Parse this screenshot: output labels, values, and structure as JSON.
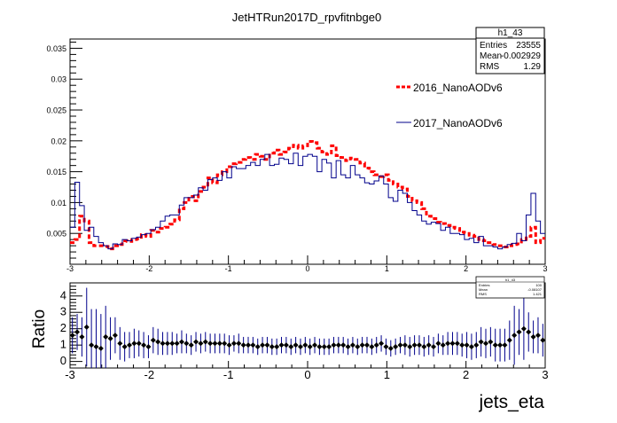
{
  "chart_data": [
    {
      "type": "line",
      "title": "JetHTRun2017D_rpvfitnbge0",
      "xlabel": "",
      "ylabel": "",
      "xlim": [
        -3,
        3
      ],
      "ylim": [
        0,
        0.0365
      ],
      "x_ticks": [
        "-3",
        "-2",
        "-1",
        "0",
        "1",
        "2",
        "3"
      ],
      "y_ticks": [
        "0.005",
        "0.01",
        "0.015",
        "0.02",
        "0.025",
        "0.03",
        "0.035"
      ],
      "stats": {
        "name": "h1_43",
        "rows": [
          {
            "label": "Entries",
            "value": "23555"
          },
          {
            "label": "Mean",
            "value": "-0.002929"
          },
          {
            "label": "RMS",
            "value": "1.29"
          }
        ]
      },
      "legend_position": "right",
      "series": [
        {
          "name": "2016_NanoAODv6",
          "style": "dashed-step",
          "color": "#ff0000",
          "values": [
            0.0035,
            0.004,
            0.0078,
            0.007,
            0.0035,
            0.003,
            0.003,
            0.0029,
            0.0025,
            0.003,
            0.0032,
            0.0038,
            0.0037,
            0.004,
            0.0041,
            0.0048,
            0.0045,
            0.0055,
            0.0052,
            0.0058,
            0.006,
            0.0065,
            0.0072,
            0.009,
            0.01,
            0.011,
            0.0103,
            0.0118,
            0.0125,
            0.014,
            0.0132,
            0.0145,
            0.015,
            0.0158,
            0.0163,
            0.0165,
            0.017,
            0.0173,
            0.017,
            0.0178,
            0.0175,
            0.017,
            0.018,
            0.0185,
            0.0178,
            0.0182,
            0.0188,
            0.0193,
            0.0188,
            0.0192,
            0.0199,
            0.0197,
            0.0188,
            0.0182,
            0.0178,
            0.0192,
            0.0176,
            0.0173,
            0.0168,
            0.0172,
            0.017,
            0.0164,
            0.0156,
            0.015,
            0.0145,
            0.0142,
            0.0145,
            0.0136,
            0.013,
            0.0125,
            0.0122,
            0.011,
            0.0103,
            0.01,
            0.009,
            0.0078,
            0.0074,
            0.0068,
            0.0066,
            0.0063,
            0.006,
            0.0058,
            0.0052,
            0.005,
            0.0047,
            0.0045,
            0.004,
            0.0038,
            0.0035,
            0.0032,
            0.003,
            0.0028,
            0.003,
            0.0032,
            0.0033,
            0.004,
            0.0045,
            0.006,
            0.0035,
            0.0042
          ]
        },
        {
          "name": "2017_NanoAODv6",
          "style": "solid-step",
          "color": "#00008b",
          "values": [
            0.006,
            0.0133,
            0.0095,
            0.0055,
            0.006,
            0.0045,
            0.0035,
            0.003,
            0.0025,
            0.0033,
            0.0032,
            0.004,
            0.0038,
            0.0042,
            0.0044,
            0.0048,
            0.005,
            0.0056,
            0.006,
            0.007,
            0.0078,
            0.008,
            0.008,
            0.0096,
            0.0108,
            0.0108,
            0.0112,
            0.0124,
            0.012,
            0.0137,
            0.014,
            0.0136,
            0.015,
            0.014,
            0.0158,
            0.0155,
            0.0155,
            0.016,
            0.0165,
            0.016,
            0.017,
            0.0178,
            0.016,
            0.0162,
            0.0172,
            0.017,
            0.0163,
            0.018,
            0.016,
            0.0175,
            0.0178,
            0.0175,
            0.015,
            0.017,
            0.0164,
            0.014,
            0.0168,
            0.0145,
            0.014,
            0.016,
            0.0145,
            0.014,
            0.0132,
            0.013,
            0.0135,
            0.0143,
            0.013,
            0.0108,
            0.0102,
            0.012,
            0.0115,
            0.01,
            0.0087,
            0.008,
            0.007,
            0.0065,
            0.0068,
            0.0066,
            0.0055,
            0.006,
            0.005,
            0.005,
            0.0048,
            0.004,
            0.0042,
            0.0035,
            0.0045,
            0.003,
            0.003,
            0.0028,
            0.0025,
            0.0028,
            0.0032,
            0.0034,
            0.005,
            0.0038,
            0.008,
            0.0115,
            0.007,
            0.005
          ]
        }
      ]
    },
    {
      "type": "scatter",
      "title": "",
      "xlabel": "jets_eta",
      "ylabel": "Ratio",
      "xlim": [
        -3,
        3
      ],
      "ylim": [
        -0.4,
        4.8
      ],
      "x_ticks": [
        "-3",
        "-2",
        "-1",
        "0",
        "1",
        "2",
        "3"
      ],
      "y_ticks": [
        "0",
        "1",
        "2",
        "3",
        "4"
      ],
      "stats": {
        "name": "h1_43",
        "rows": [
          {
            "label": "Entries",
            "value": "100"
          },
          {
            "label": "Mean",
            "value": "-0.08107"
          },
          {
            "label": "RMS",
            "value": "1.421"
          }
        ]
      },
      "series": [
        {
          "name": "",
          "color": "#000000",
          "values": [
            1.6,
            1.8,
            1.5,
            2.1,
            1.0,
            0.9,
            0.8,
            1.5,
            1.4,
            1.6,
            1.1,
            0.9,
            1.0,
            1.1,
            1.1,
            1.0,
            0.9,
            1.3,
            1.2,
            1.1,
            1.1,
            1.1,
            1.1,
            1.2,
            1.1,
            1.0,
            1.2,
            1.1,
            1.2,
            1.1,
            1.1,
            1.1,
            1.1,
            1.0,
            1.1,
            1.1,
            1.0,
            1.0,
            1.0,
            0.9,
            1.0,
            1.0,
            0.9,
            0.9,
            1.0,
            1.0,
            0.9,
            1.0,
            0.9,
            1.0,
            0.9,
            1.0,
            0.9,
            0.9,
            0.9,
            1.0,
            1.0,
            1.0,
            0.9,
            1.0,
            0.9,
            1.0,
            1.0,
            0.9,
            1.0,
            1.1,
            0.9,
            0.8,
            0.9,
            1.0,
            1.0,
            0.9,
            1.0,
            1.0,
            0.9,
            1.0,
            0.9,
            1.1,
            1.0,
            1.1,
            1.1,
            1.1,
            1.0,
            1.0,
            0.9,
            1.0,
            1.2,
            1.1,
            1.2,
            1.0,
            1.0,
            1.0,
            1.3,
            1.6,
            1.8,
            2.0,
            1.8,
            1.5,
            1.6,
            1.3
          ],
          "errors": [
            1.1,
            1.1,
            1.2,
            2.4,
            2.2,
            2.3,
            2.1,
            1.9,
            1.3,
            1.1,
            1.0,
            0.9,
            0.8,
            0.9,
            0.8,
            0.8,
            0.7,
            0.8,
            0.8,
            0.7,
            0.7,
            0.7,
            0.6,
            0.7,
            0.6,
            0.6,
            0.6,
            0.6,
            0.6,
            0.6,
            0.6,
            0.6,
            0.6,
            0.6,
            0.5,
            0.6,
            0.5,
            0.5,
            0.5,
            0.5,
            0.5,
            0.5,
            0.5,
            0.5,
            0.5,
            0.5,
            0.5,
            0.5,
            0.5,
            0.5,
            0.5,
            0.5,
            0.5,
            0.5,
            0.5,
            0.5,
            0.5,
            0.5,
            0.5,
            0.5,
            0.5,
            0.5,
            0.5,
            0.5,
            0.5,
            0.5,
            0.5,
            0.5,
            0.5,
            0.5,
            0.6,
            0.6,
            0.6,
            0.6,
            0.6,
            0.6,
            0.6,
            0.6,
            0.6,
            0.7,
            0.7,
            0.7,
            0.7,
            0.8,
            0.8,
            0.8,
            0.9,
            0.9,
            0.9,
            1.0,
            1.0,
            1.0,
            1.2,
            1.8,
            1.4,
            1.9,
            1.2,
            1.0,
            1.1,
            1.0
          ]
        }
      ]
    }
  ]
}
